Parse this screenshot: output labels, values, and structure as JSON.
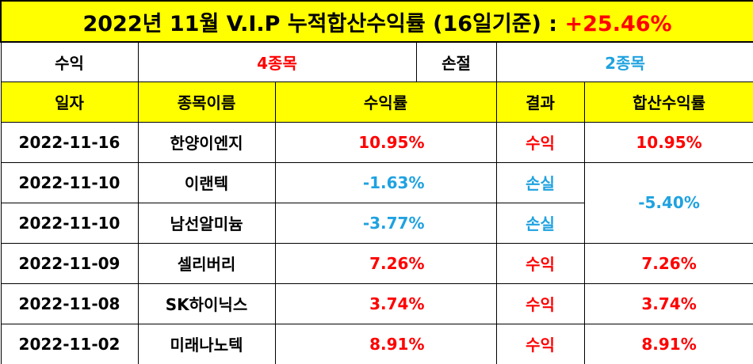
{
  "title": {
    "main": "2022년 11월 V.I.P 누적합산수익률 (16일기준) : ",
    "total_return": "+25.46%"
  },
  "summary": {
    "profit_label": "수익",
    "profit_count": "4종목",
    "loss_label": "손절",
    "loss_count": "2종목"
  },
  "headers": {
    "date": "일자",
    "name": "종목이름",
    "return": "수익률",
    "result": "결과",
    "combined": "합산수익률"
  },
  "rows": [
    {
      "date": "2022-11-16",
      "name": "한양이엔지",
      "return": "10.95%",
      "result": "수익",
      "combined": "10.95%"
    },
    {
      "date": "2022-11-10",
      "name": "이랜텍",
      "return": "-1.63%",
      "result": "손실",
      "combined": "-5.40%"
    },
    {
      "date": "2022-11-10",
      "name": "남선알미늄",
      "return": "-3.77%",
      "result": "손실",
      "combined": ""
    },
    {
      "date": "2022-11-09",
      "name": "셀리버리",
      "return": "7.26%",
      "result": "수익",
      "combined": "7.26%"
    },
    {
      "date": "2022-11-08",
      "name": "SK하이닉스",
      "return": "3.74%",
      "result": "수익",
      "combined": "3.74%"
    },
    {
      "date": "2022-11-02",
      "name": "미래나노텍",
      "return": "8.91%",
      "result": "수익",
      "combined": "8.91%"
    }
  ],
  "colors": {
    "header_bg": "#ffff00",
    "profit": "#ff0000",
    "loss": "#1fa2e0"
  }
}
